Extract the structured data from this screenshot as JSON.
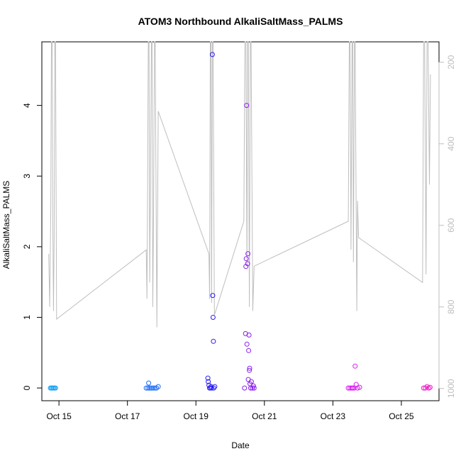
{
  "chart_data": {
    "type": "scatter",
    "title": "ATOM3 Northbound AlkaliSaltMass_PALMS",
    "xlabel": "Date",
    "ylabel": "AlkaliSaltMass_PALMS",
    "x_ticks": [
      "Oct 15",
      "Oct 17",
      "Oct 19",
      "Oct 21",
      "Oct 23",
      "Oct 25"
    ],
    "x_tick_days": [
      15,
      17,
      19,
      21,
      23,
      25
    ],
    "xlim": [
      14.5,
      26.1
    ],
    "y_ticks": [
      0,
      1,
      2,
      3,
      4
    ],
    "ylim": [
      -0.18,
      4.9
    ],
    "y2_ticks": [
      200,
      400,
      600,
      800,
      1000
    ],
    "y2lim": [
      1030,
      150
    ],
    "y2_reversed": true,
    "grid": false,
    "colors": {
      "frame": "#000000",
      "secondary_axis": "#bdbdbd",
      "secondary_line": "#bebebe"
    },
    "scatter_points": [
      {
        "x": 14.75,
        "y": 0.0,
        "c": "#1aa4f0"
      },
      {
        "x": 14.78,
        "y": 0.0,
        "c": "#1aa4f0"
      },
      {
        "x": 14.81,
        "y": 0.0,
        "c": "#1aa4f0"
      },
      {
        "x": 14.84,
        "y": 0.0,
        "c": "#1aa4f0"
      },
      {
        "x": 14.87,
        "y": 0.0,
        "c": "#1aa4f0"
      },
      {
        "x": 14.9,
        "y": 0.0,
        "c": "#1aa4f0"
      },
      {
        "x": 17.55,
        "y": 0.0,
        "c": "#1c6cf5"
      },
      {
        "x": 17.6,
        "y": 0.0,
        "c": "#1c6cf5"
      },
      {
        "x": 17.62,
        "y": 0.07,
        "c": "#1c6cf5"
      },
      {
        "x": 17.65,
        "y": 0.0,
        "c": "#1c6cf5"
      },
      {
        "x": 17.7,
        "y": 0.0,
        "c": "#1c6cf5"
      },
      {
        "x": 17.75,
        "y": 0.0,
        "c": "#1c6cf5"
      },
      {
        "x": 17.8,
        "y": 0.0,
        "c": "#1c6cf5"
      },
      {
        "x": 17.85,
        "y": 0.0,
        "c": "#1c6cf5"
      },
      {
        "x": 17.9,
        "y": 0.02,
        "c": "#1c6cf5"
      },
      {
        "x": 19.35,
        "y": 0.14,
        "c": "#2a1ef0"
      },
      {
        "x": 19.36,
        "y": 0.09,
        "c": "#2a1ef0"
      },
      {
        "x": 19.38,
        "y": 0.04,
        "c": "#2a1ef0"
      },
      {
        "x": 19.4,
        "y": 0.0,
        "c": "#2a1ef0"
      },
      {
        "x": 19.42,
        "y": 0.0,
        "c": "#2a1ef0"
      },
      {
        "x": 19.44,
        "y": 0.02,
        "c": "#2a1ef0"
      },
      {
        "x": 19.46,
        "y": 0.0,
        "c": "#2a1ef0"
      },
      {
        "x": 19.48,
        "y": 4.72,
        "c": "#2a1ef0"
      },
      {
        "x": 19.49,
        "y": 1.31,
        "c": "#2a1ef0"
      },
      {
        "x": 19.5,
        "y": 1.0,
        "c": "#2a1ef0"
      },
      {
        "x": 19.51,
        "y": 0.66,
        "c": "#2a1ef0"
      },
      {
        "x": 19.52,
        "y": 0.0,
        "c": "#2a1ef0"
      },
      {
        "x": 19.55,
        "y": 0.02,
        "c": "#2a1ef0"
      },
      {
        "x": 20.42,
        "y": 0.0,
        "c": "#8a1ef0"
      },
      {
        "x": 20.45,
        "y": 0.77,
        "c": "#8a1ef0"
      },
      {
        "x": 20.46,
        "y": 1.72,
        "c": "#8a1ef0"
      },
      {
        "x": 20.47,
        "y": 1.83,
        "c": "#8a1ef0"
      },
      {
        "x": 20.48,
        "y": 4.0,
        "c": "#8a1ef0"
      },
      {
        "x": 20.49,
        "y": 0.62,
        "c": "#8a1ef0"
      },
      {
        "x": 20.51,
        "y": 1.76,
        "c": "#8a1ef0"
      },
      {
        "x": 20.52,
        "y": 1.9,
        "c": "#8a1ef0"
      },
      {
        "x": 20.53,
        "y": 0.12,
        "c": "#8a1ef0"
      },
      {
        "x": 20.54,
        "y": 0.53,
        "c": "#8a1ef0"
      },
      {
        "x": 20.55,
        "y": 0.75,
        "c": "#8a1ef0"
      },
      {
        "x": 20.56,
        "y": 0.25,
        "c": "#8a1ef0"
      },
      {
        "x": 20.57,
        "y": 0.28,
        "c": "#8a1ef0"
      },
      {
        "x": 20.58,
        "y": 0.06,
        "c": "#8a1ef0"
      },
      {
        "x": 20.6,
        "y": 0.0,
        "c": "#8a1ef0"
      },
      {
        "x": 20.62,
        "y": 0.09,
        "c": "#8a1ef0"
      },
      {
        "x": 20.65,
        "y": 0.0,
        "c": "#8a1ef0"
      },
      {
        "x": 20.68,
        "y": 0.03,
        "c": "#8a1ef0"
      },
      {
        "x": 20.7,
        "y": 0.0,
        "c": "#8a1ef0"
      },
      {
        "x": 23.45,
        "y": 0.0,
        "c": "#d81ef0"
      },
      {
        "x": 23.5,
        "y": 0.0,
        "c": "#d81ef0"
      },
      {
        "x": 23.55,
        "y": 0.0,
        "c": "#d81ef0"
      },
      {
        "x": 23.58,
        "y": 0.0,
        "c": "#d81ef0"
      },
      {
        "x": 23.62,
        "y": 0.0,
        "c": "#d81ef0"
      },
      {
        "x": 23.65,
        "y": 0.31,
        "c": "#d81ef0"
      },
      {
        "x": 23.68,
        "y": 0.05,
        "c": "#d81ef0"
      },
      {
        "x": 23.72,
        "y": 0.0,
        "c": "#d81ef0"
      },
      {
        "x": 23.78,
        "y": 0.01,
        "c": "#d81ef0"
      },
      {
        "x": 25.65,
        "y": 0.0,
        "c": "#f01ec8"
      },
      {
        "x": 25.7,
        "y": 0.0,
        "c": "#f01ec8"
      },
      {
        "x": 25.75,
        "y": 0.02,
        "c": "#f01ec8"
      },
      {
        "x": 25.8,
        "y": 0.0,
        "c": "#f01ec8"
      },
      {
        "x": 25.84,
        "y": 0.01,
        "c": "#f01ec8"
      }
    ],
    "secondary_line": [
      [
        14.7,
        670
      ],
      [
        14.73,
        800
      ],
      [
        14.76,
        560
      ],
      [
        14.78,
        150
      ],
      [
        14.8,
        150
      ],
      [
        14.82,
        580
      ],
      [
        14.84,
        810
      ],
      [
        14.86,
        620
      ],
      [
        14.88,
        150
      ],
      [
        14.9,
        150
      ],
      [
        14.93,
        830
      ],
      [
        17.55,
        660
      ],
      [
        17.57,
        780
      ],
      [
        17.59,
        480
      ],
      [
        17.61,
        150
      ],
      [
        17.63,
        150
      ],
      [
        17.65,
        740
      ],
      [
        17.67,
        540
      ],
      [
        17.7,
        150
      ],
      [
        17.72,
        150
      ],
      [
        17.74,
        800
      ],
      [
        17.76,
        600
      ],
      [
        17.79,
        150
      ],
      [
        17.81,
        150
      ],
      [
        17.86,
        850
      ],
      [
        17.9,
        320
      ],
      [
        19.38,
        670
      ],
      [
        19.4,
        780
      ],
      [
        19.42,
        150
      ],
      [
        19.44,
        150
      ],
      [
        19.46,
        790
      ],
      [
        19.48,
        150
      ],
      [
        19.5,
        150
      ],
      [
        19.54,
        820
      ],
      [
        20.4,
        590
      ],
      [
        20.43,
        150
      ],
      [
        20.46,
        150
      ],
      [
        20.49,
        700
      ],
      [
        20.51,
        150
      ],
      [
        20.53,
        150
      ],
      [
        20.56,
        800
      ],
      [
        20.59,
        150
      ],
      [
        20.61,
        150
      ],
      [
        20.66,
        810
      ],
      [
        20.7,
        700
      ],
      [
        23.45,
        590
      ],
      [
        23.48,
        150
      ],
      [
        23.5,
        150
      ],
      [
        23.53,
        660
      ],
      [
        23.56,
        150
      ],
      [
        23.58,
        150
      ],
      [
        23.6,
        690
      ],
      [
        23.63,
        150
      ],
      [
        23.65,
        150
      ],
      [
        23.7,
        810
      ],
      [
        23.72,
        540
      ],
      [
        23.75,
        630
      ],
      [
        25.62,
        740
      ],
      [
        25.65,
        150
      ],
      [
        25.68,
        150
      ],
      [
        25.72,
        720
      ],
      [
        25.75,
        150
      ],
      [
        25.78,
        150
      ],
      [
        25.82,
        500
      ],
      [
        25.85,
        230
      ]
    ]
  }
}
